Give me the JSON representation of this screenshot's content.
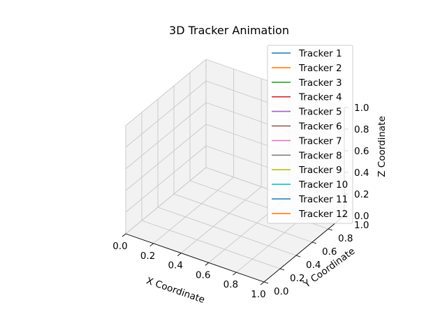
{
  "chart_data": {
    "type": "line",
    "projection": "3d",
    "title": "3D Tracker Animation",
    "xlabel": "X Coordinate",
    "ylabel": "Y Coordinate",
    "zlabel": "Z Coordinate",
    "xlim": [
      0.0,
      1.0
    ],
    "ylim": [
      0.0,
      1.0
    ],
    "zlim": [
      0.0,
      1.0
    ],
    "xticks": [
      "0.0",
      "0.2",
      "0.4",
      "0.6",
      "0.8",
      "1.0"
    ],
    "yticks": [
      "0.0",
      "0.2",
      "0.4",
      "0.6",
      "0.8",
      "1.0"
    ],
    "zticks": [
      "0.0",
      "0.2",
      "0.4",
      "0.6",
      "0.8",
      "1.0"
    ],
    "grid": true,
    "legend_position": "top-right",
    "series": [
      {
        "name": "Tracker 1",
        "color": "#1f77b4",
        "points": []
      },
      {
        "name": "Tracker 2",
        "color": "#ff7f0e",
        "points": []
      },
      {
        "name": "Tracker 3",
        "color": "#2ca02c",
        "points": []
      },
      {
        "name": "Tracker 4",
        "color": "#d62728",
        "points": []
      },
      {
        "name": "Tracker 5",
        "color": "#9467bd",
        "points": []
      },
      {
        "name": "Tracker 6",
        "color": "#8c564b",
        "points": []
      },
      {
        "name": "Tracker 7",
        "color": "#e377c2",
        "points": []
      },
      {
        "name": "Tracker 8",
        "color": "#7f7f7f",
        "points": []
      },
      {
        "name": "Tracker 9",
        "color": "#bcbd22",
        "points": []
      },
      {
        "name": "Tracker 10",
        "color": "#17becf",
        "points": []
      },
      {
        "name": "Tracker 11",
        "color": "#1f77b4",
        "points": []
      },
      {
        "name": "Tracker 12",
        "color": "#ff7f0e",
        "points": []
      }
    ]
  }
}
